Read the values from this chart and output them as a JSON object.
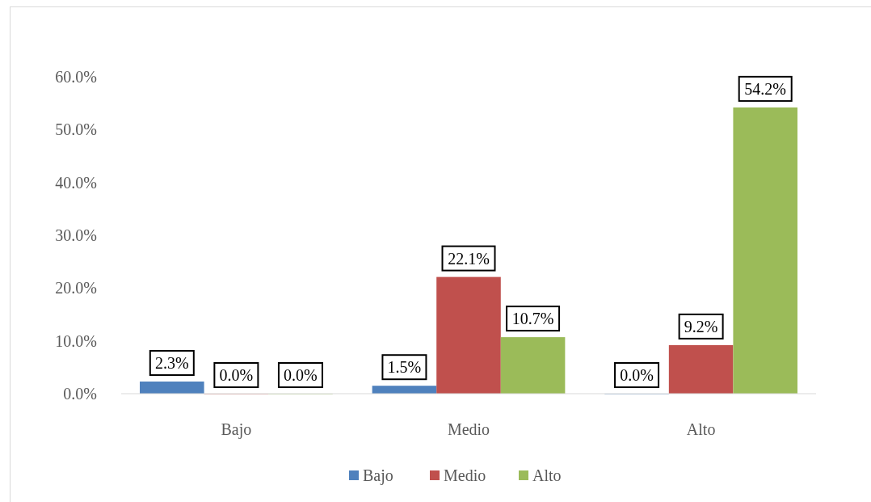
{
  "chart_data": {
    "type": "bar",
    "categories": [
      "Bajo",
      "Medio",
      "Alto"
    ],
    "series": [
      {
        "name": "Bajo",
        "color": "#4f81bd",
        "values": [
          2.3,
          1.5,
          0.0
        ],
        "value_labels": [
          "2.3%",
          "1.5%",
          "0.0%"
        ]
      },
      {
        "name": "Medio",
        "color": "#c0504d",
        "values": [
          0.0,
          22.1,
          9.2
        ],
        "value_labels": [
          "0.0%",
          "22.1%",
          "9.2%"
        ]
      },
      {
        "name": "Alto",
        "color": "#9bbb59",
        "values": [
          0.0,
          10.7,
          54.2
        ],
        "value_labels": [
          "0.0%",
          "10.7%",
          "54.2%"
        ]
      }
    ],
    "ylim": [
      0,
      60
    ],
    "yticks": [
      {
        "value": 0,
        "label": "0.0%"
      },
      {
        "value": 10,
        "label": "10.0%"
      },
      {
        "value": 20,
        "label": "20.0%"
      },
      {
        "value": 30,
        "label": "30.0%"
      },
      {
        "value": 40,
        "label": "40.0%"
      },
      {
        "value": 50,
        "label": "50.0%"
      },
      {
        "value": 60,
        "label": "60.0%"
      }
    ],
    "grid": false,
    "legend": "bottom"
  }
}
